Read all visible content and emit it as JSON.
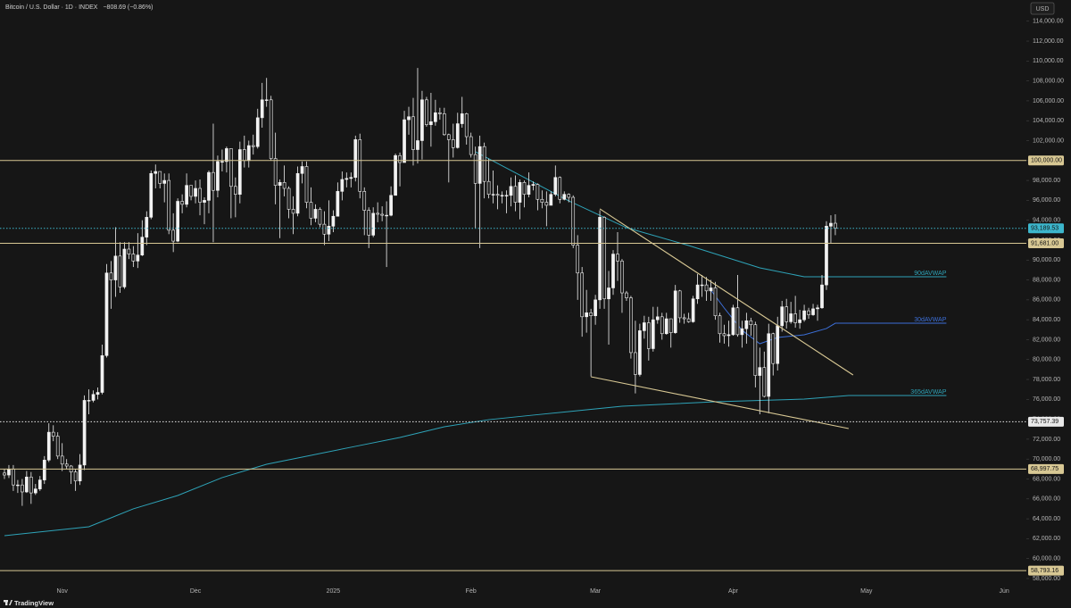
{
  "header": {
    "symbol": "Bitcoin / U.S. Dollar · 1D · INDEX",
    "change": "−808.69 (−0.86%)",
    "currency": "USD",
    "brand": "TradingView"
  },
  "chart_data": {
    "type": "candlestick",
    "xlim": [
      -1,
      230
    ],
    "xticks": [
      {
        "value": 13,
        "label": "Nov"
      },
      {
        "value": 43,
        "label": "Dec"
      },
      {
        "value": 74,
        "label": "2025"
      },
      {
        "value": 105,
        "label": "Feb"
      },
      {
        "value": 133,
        "label": "Mar"
      },
      {
        "value": 164,
        "label": "Apr"
      },
      {
        "value": 194,
        "label": "May"
      },
      {
        "value": 225,
        "label": "Jun"
      }
    ],
    "ylim": [
      57100,
      116130
    ],
    "yticks": [
      {
        "value": 58000,
        "label": "58,000.00"
      },
      {
        "value": 60000,
        "label": "60,000.00"
      },
      {
        "value": 62000,
        "label": "62,000.00"
      },
      {
        "value": 64000,
        "label": "64,000.00"
      },
      {
        "value": 66000,
        "label": "66,000.00"
      },
      {
        "value": 68000,
        "label": "68,000.00"
      },
      {
        "value": 70000,
        "label": "70,000.00"
      },
      {
        "value": 72000,
        "label": "72,000.00"
      },
      {
        "value": 74000,
        "label": "74,000.00"
      },
      {
        "value": 76000,
        "label": "76,000.00"
      },
      {
        "value": 78000,
        "label": "78,000.00"
      },
      {
        "value": 80000,
        "label": "80,000.00"
      },
      {
        "value": 82000,
        "label": "82,000.00"
      },
      {
        "value": 84000,
        "label": "84,000.00"
      },
      {
        "value": 86000,
        "label": "86,000.00"
      },
      {
        "value": 88000,
        "label": "88,000.00"
      },
      {
        "value": 90000,
        "label": "90,000.00"
      },
      {
        "value": 92000,
        "label": "92,000.00"
      },
      {
        "value": 94000,
        "label": "94,000.00"
      },
      {
        "value": 96000,
        "label": "96,000.00"
      },
      {
        "value": 98000,
        "label": "98,000.00"
      },
      {
        "value": 100000,
        "label": "100,000.00"
      },
      {
        "value": 102000,
        "label": "102,000.00"
      },
      {
        "value": 104000,
        "label": "104,000.00"
      },
      {
        "value": 106000,
        "label": "106,000.00"
      },
      {
        "value": 108000,
        "label": "108,000.00"
      },
      {
        "value": 110000,
        "label": "110,000.00"
      },
      {
        "value": 112000,
        "label": "112,000.00"
      },
      {
        "value": 114000,
        "label": "114,000.00"
      }
    ],
    "up_color": "#f2f2f2",
    "down_color": "#1e1e1e",
    "open": [
      68600,
      68400,
      69000,
      67400,
      67400,
      66700,
      68200,
      66600,
      67000,
      67900,
      69900,
      72700,
      72300,
      70300,
      69500,
      69300,
      68700,
      67800,
      69400,
      75900,
      75900,
      76500,
      76700,
      80400,
      88700,
      88000,
      90400,
      87300,
      91100,
      90600,
      89900,
      90500,
      92300,
      94300,
      98700,
      98900,
      97700,
      98000,
      93000,
      91900,
      95900,
      95600,
      97500,
      96400,
      97200,
      95800,
      96000,
      98800,
      97000,
      99900,
      99900,
      101200,
      97400,
      96600,
      101100,
      100000,
      101500,
      101400,
      104300,
      106100,
      106100,
      100200,
      97500,
      97800,
      97200,
      95100,
      94700,
      98700,
      99400,
      95800,
      94200,
      95100,
      93600,
      92600,
      93400,
      94400,
      96900,
      98100,
      98200,
      98300,
      102100,
      96900,
      95000,
      92500,
      94700,
      94600,
      94500,
      94500,
      96500,
      100500,
      99800,
      104100,
      104400,
      101100,
      102000,
      106100,
      103600,
      103900,
      104800,
      104700,
      102600,
      102100,
      101300,
      103700,
      104700,
      102400,
      100600,
      97700,
      101400,
      97900,
      96600,
      96600,
      96500,
      96500,
      96500,
      97400,
      95800,
      97800,
      96600,
      97500,
      97600,
      96100,
      95800,
      95500,
      96600,
      98300,
      96100,
      96600,
      96300,
      91500,
      88700,
      84300,
      84700,
      84400,
      86000,
      94300,
      86100,
      87200,
      90600,
      89900,
      86700,
      86200,
      80700,
      78500,
      82900,
      83700,
      81100,
      84000,
      84300,
      82600,
      84100,
      82700,
      86900,
      84200,
      84100,
      83800,
      86100,
      87500,
      87500,
      86900,
      87200,
      84400,
      82600,
      82400,
      82500,
      85200,
      82500,
      83100,
      83900,
      83500,
      78400,
      79200,
      76300,
      82600,
      79600,
      83400,
      85300,
      83800,
      84600,
      83700,
      84000,
      84900,
      84500,
      85100,
      85200,
      87500,
      93400,
      93700
    ],
    "high": [
      69000,
      69400,
      69400,
      67900,
      68000,
      68800,
      68700,
      67500,
      68300,
      70300,
      73600,
      73400,
      72700,
      71600,
      70000,
      69400,
      69000,
      70500,
      76400,
      77000,
      76900,
      77200,
      81500,
      89600,
      89900,
      93300,
      91800,
      91800,
      91800,
      91400,
      92700,
      94000,
      94900,
      99000,
      99600,
      98900,
      98700,
      98700,
      94700,
      96200,
      96600,
      98700,
      97500,
      98000,
      98100,
      96300,
      99000,
      103700,
      100500,
      101100,
      101400,
      101200,
      98300,
      101900,
      102500,
      102000,
      102600,
      105200,
      107800,
      108300,
      106500,
      102800,
      98100,
      99500,
      97400,
      96400,
      99400,
      99900,
      99900,
      97300,
      95600,
      95300,
      94900,
      96000,
      95000,
      97800,
      98900,
      98800,
      98800,
      102500,
      102700,
      97300,
      95300,
      95300,
      95800,
      95400,
      95900,
      97400,
      100700,
      100800,
      105000,
      105400,
      106300,
      109300,
      107000,
      106400,
      106800,
      106100,
      105300,
      105300,
      102700,
      103700,
      104800,
      106400,
      104800,
      102800,
      101400,
      102500,
      101800,
      100200,
      99000,
      97500,
      96900,
      97000,
      98300,
      98500,
      98100,
      98000,
      98800,
      97900,
      97700,
      97000,
      96900,
      96900,
      99500,
      98400,
      96900,
      96700,
      96500,
      92500,
      89300,
      87000,
      85100,
      86500,
      95000,
      94400,
      88900,
      91000,
      92800,
      90100,
      86900,
      86400,
      83900,
      83600,
      84400,
      84300,
      85300,
      85300,
      84700,
      84700,
      84100,
      87500,
      87000,
      84600,
      84700,
      86400,
      88600,
      88500,
      88300,
      88000,
      87800,
      84700,
      83500,
      83900,
      85500,
      88500,
      83900,
      84700,
      84200,
      83800,
      81200,
      80800,
      83600,
      82700,
      84300,
      85900,
      86100,
      85800,
      86400,
      85000,
      85500,
      85200,
      85600,
      85500,
      88500,
      93900,
      94500,
      94600
    ],
    "low": [
      68000,
      68100,
      66800,
      66600,
      65300,
      66600,
      65500,
      66400,
      66800,
      67500,
      69700,
      71800,
      70000,
      68800,
      69000,
      67500,
      66800,
      67400,
      68900,
      74500,
      75700,
      76000,
      76500,
      80200,
      85100,
      86300,
      86700,
      87100,
      90100,
      89300,
      89200,
      90400,
      91500,
      94100,
      97200,
      97200,
      95800,
      92600,
      90800,
      91800,
      94700,
      95300,
      96000,
      95700,
      94500,
      93600,
      94700,
      91800,
      96300,
      98900,
      98800,
      94200,
      94300,
      95700,
      99300,
      99300,
      100600,
      101200,
      103300,
      105400,
      100000,
      95600,
      92200,
      96400,
      94200,
      92600,
      94400,
      97700,
      95200,
      93500,
      93800,
      93300,
      91500,
      91900,
      92800,
      94400,
      96000,
      97300,
      97300,
      97900,
      96200,
      92500,
      91200,
      92300,
      93800,
      93900,
      89300,
      94400,
      96500,
      97400,
      99800,
      102600,
      99500,
      99700,
      100100,
      103400,
      101400,
      103500,
      104100,
      102500,
      97800,
      100300,
      101200,
      103300,
      101600,
      100300,
      93200,
      91200,
      96200,
      96200,
      95700,
      95100,
      95700,
      94700,
      95400,
      94900,
      94100,
      95300,
      96300,
      97000,
      95000,
      95200,
      93400,
      95500,
      96400,
      95700,
      96000,
      95800,
      91200,
      86000,
      82300,
      82700,
      78300,
      83500,
      85100,
      85100,
      81500,
      86500,
      87900,
      84700,
      85900,
      80100,
      76600,
      78300,
      82100,
      79900,
      80800,
      83600,
      82000,
      82500,
      81200,
      82600,
      83700,
      83600,
      83700,
      83700,
      85600,
      86300,
      85900,
      85900,
      84000,
      81700,
      81600,
      81300,
      82400,
      82300,
      81200,
      81600,
      82400,
      77200,
      74500,
      76200,
      74600,
      78400,
      78900,
      82800,
      83100,
      83600,
      83200,
      83100,
      83800,
      84100,
      84400,
      83900,
      85100,
      87000,
      91700,
      92500
    ],
    "close": [
      68400,
      69000,
      67400,
      67400,
      66700,
      68200,
      66600,
      67000,
      67900,
      69900,
      72700,
      72300,
      70300,
      69500,
      69300,
      68700,
      67800,
      69400,
      75900,
      75900,
      76500,
      76700,
      80400,
      88700,
      88000,
      90400,
      87300,
      91100,
      90600,
      89900,
      90500,
      92300,
      94300,
      98700,
      98900,
      97700,
      98000,
      93000,
      91900,
      95900,
      95600,
      97500,
      96400,
      97200,
      95800,
      96000,
      98800,
      97000,
      99900,
      99900,
      101200,
      97400,
      96600,
      101100,
      100000,
      101500,
      101400,
      104300,
      106100,
      106100,
      100200,
      97500,
      97800,
      97200,
      95100,
      94700,
      98700,
      99400,
      95800,
      94200,
      95100,
      93600,
      92600,
      93400,
      94400,
      96900,
      98100,
      98200,
      98300,
      102100,
      96900,
      95000,
      92500,
      94700,
      94600,
      94500,
      94500,
      96500,
      100500,
      99800,
      104100,
      104400,
      101100,
      102000,
      106100,
      103600,
      103900,
      104800,
      104700,
      102600,
      102100,
      101300,
      103700,
      104700,
      102400,
      100600,
      97700,
      101400,
      97900,
      96600,
      96600,
      96500,
      96500,
      96500,
      97400,
      95800,
      97800,
      96600,
      97500,
      97600,
      96100,
      95800,
      95500,
      96600,
      98300,
      96100,
      96600,
      96300,
      91500,
      88700,
      84300,
      84700,
      84400,
      86000,
      94300,
      86100,
      87200,
      90600,
      89900,
      86700,
      86200,
      80700,
      78500,
      82900,
      83700,
      81100,
      84000,
      84300,
      82600,
      84100,
      82700,
      86900,
      84200,
      84100,
      83800,
      86100,
      87500,
      87500,
      86900,
      87200,
      84400,
      82600,
      82400,
      82500,
      85200,
      82500,
      83100,
      83900,
      83500,
      78400,
      79200,
      76300,
      82600,
      79600,
      83400,
      85300,
      83800,
      84600,
      83700,
      84000,
      84900,
      84500,
      85100,
      85200,
      87500,
      93400,
      93700,
      93200
    ],
    "levels": [
      {
        "value": 100000,
        "label": "100,000.00",
        "color": "#d8c894",
        "style": "solid"
      },
      {
        "value": 93189.53,
        "label": "93,189.53",
        "color": "#3cb6cc",
        "style": "dotted"
      },
      {
        "value": 91681,
        "label": "91,681.00",
        "color": "#d8c894",
        "style": "solid"
      },
      {
        "value": 73757.39,
        "label": "73,757.39",
        "color": "#e8e8e8",
        "style": "dotted"
      },
      {
        "value": 68997.75,
        "label": "68,997.75",
        "color": "#d8c894",
        "style": "solid"
      },
      {
        "value": 58793.16,
        "label": "58,793.16",
        "color": "#d8c894",
        "style": "solid"
      }
    ],
    "trendlines": [
      {
        "x": [
          134,
          191
        ],
        "values": [
          95140,
          78450
        ],
        "color": "#d8c894"
      },
      {
        "x": [
          132,
          190
        ],
        "values": [
          78270,
          73070
        ],
        "color": "#d8c894"
      }
    ],
    "series": [
      {
        "name": "90dAVWAP",
        "color": "#2ea3b8",
        "x": [
          106,
          127,
          140,
          154,
          170,
          180,
          212
        ],
        "values": [
          100880,
          95950,
          93250,
          91460,
          89220,
          88320,
          88320
        ]
      },
      {
        "name": "30dAVWAP",
        "color": "#3c6fd8",
        "x": [
          159,
          162,
          166,
          170,
          174,
          180,
          185,
          187,
          212
        ],
        "values": [
          86980,
          85180,
          82940,
          81590,
          82220,
          82490,
          83120,
          83650,
          83650
        ]
      },
      {
        "name": "365dAVWAP",
        "color": "#2ea3b8",
        "x": [
          0,
          19,
          29,
          39,
          49,
          59,
          69,
          79,
          89,
          99,
          109,
          119,
          129,
          139,
          160,
          180,
          190,
          212
        ],
        "values": [
          62300,
          63200,
          65000,
          66340,
          68140,
          69480,
          70380,
          71280,
          72170,
          73250,
          73960,
          74420,
          74860,
          75310,
          75760,
          76030,
          76390,
          76390
        ]
      }
    ]
  }
}
